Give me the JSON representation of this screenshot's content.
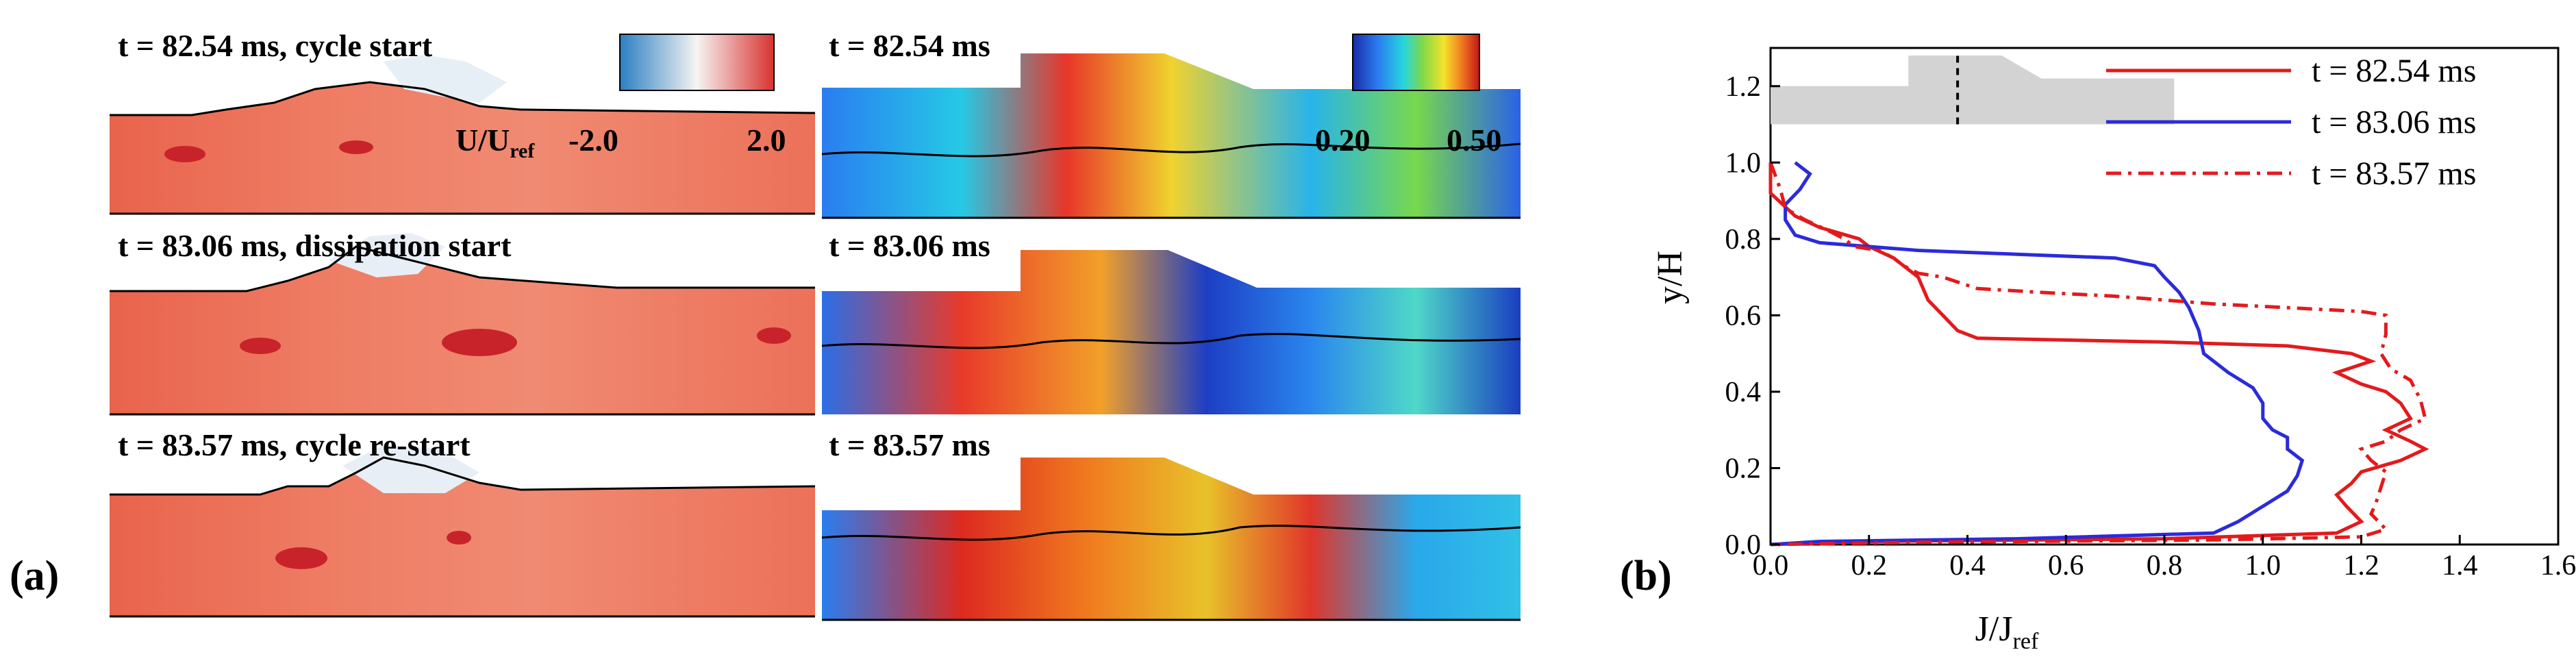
{
  "panel_a": {
    "letter": "(a)",
    "velocity_panels": [
      {
        "title": "t = 82.54 ms, cycle start"
      },
      {
        "title": "t = 83.06 ms, dissipation start"
      },
      {
        "title": "t = 83.57 ms, cycle re-start"
      }
    ],
    "vorticity_panels": [
      {
        "title": "t = 82.54 ms"
      },
      {
        "title": "t = 83.06 ms"
      },
      {
        "title": "t = 83.57 ms"
      }
    ],
    "colorbar_velocity": {
      "label_main": "U/U",
      "label_sub": "ref",
      "min_label": "-2.0",
      "max_label": "2.0"
    },
    "colorbar_rainbow": {
      "min_label": "0.20",
      "max_label": "0.50"
    },
    "colors": {
      "red_field": "#ec6a50",
      "blue_field": "#2a55d6",
      "white": "#f7f3f0"
    }
  },
  "panel_b": {
    "letter": "(b)",
    "chart_data": {
      "type": "line",
      "xlabel": "J/J",
      "xlabel_sub": "ref",
      "ylabel": "y/H",
      "xlim": [
        0.0,
        1.6
      ],
      "ylim": [
        0.0,
        1.0
      ],
      "xticks": [
        "0.0",
        "0.2",
        "0.4",
        "0.6",
        "0.8",
        "1.0",
        "1.2",
        "1.4",
        "1.6"
      ],
      "yticks": [
        "0.0",
        "0.2",
        "0.4",
        "0.6",
        "0.8",
        "1.0",
        "1.2"
      ],
      "legend_position": "top-right",
      "series": [
        {
          "name": "t = 82.54 ms",
          "color": "#e31a1c",
          "dash": "solid",
          "points": [
            [
              0.0,
              1.0
            ],
            [
              0.0,
              0.92
            ],
            [
              0.05,
              0.86
            ],
            [
              0.1,
              0.83
            ],
            [
              0.18,
              0.8
            ],
            [
              0.2,
              0.78
            ],
            [
              0.25,
              0.75
            ],
            [
              0.28,
              0.72
            ],
            [
              0.3,
              0.7
            ],
            [
              0.32,
              0.64
            ],
            [
              0.35,
              0.6
            ],
            [
              0.38,
              0.56
            ],
            [
              0.42,
              0.54
            ],
            [
              0.8,
              0.53
            ],
            [
              1.05,
              0.52
            ],
            [
              1.18,
              0.5
            ],
            [
              1.22,
              0.48
            ],
            [
              1.15,
              0.45
            ],
            [
              1.2,
              0.42
            ],
            [
              1.25,
              0.4
            ],
            [
              1.28,
              0.37
            ],
            [
              1.3,
              0.33
            ],
            [
              1.25,
              0.3
            ],
            [
              1.3,
              0.27
            ],
            [
              1.33,
              0.25
            ],
            [
              1.28,
              0.22
            ],
            [
              1.2,
              0.19
            ],
            [
              1.18,
              0.16
            ],
            [
              1.15,
              0.13
            ],
            [
              1.17,
              0.1
            ],
            [
              1.2,
              0.06
            ],
            [
              1.15,
              0.03
            ],
            [
              0.8,
              0.015
            ],
            [
              0.2,
              0.008
            ],
            [
              0.0,
              0.0
            ]
          ]
        },
        {
          "name": "t = 83.06 ms",
          "color": "#2b2bdb",
          "dash": "solid",
          "points": [
            [
              0.05,
              1.0
            ],
            [
              0.08,
              0.97
            ],
            [
              0.06,
              0.93
            ],
            [
              0.03,
              0.89
            ],
            [
              0.03,
              0.85
            ],
            [
              0.05,
              0.81
            ],
            [
              0.1,
              0.79
            ],
            [
              0.3,
              0.77
            ],
            [
              0.5,
              0.76
            ],
            [
              0.7,
              0.75
            ],
            [
              0.78,
              0.73
            ],
            [
              0.8,
              0.7
            ],
            [
              0.83,
              0.66
            ],
            [
              0.85,
              0.62
            ],
            [
              0.87,
              0.56
            ],
            [
              0.88,
              0.5
            ],
            [
              0.93,
              0.45
            ],
            [
              0.98,
              0.41
            ],
            [
              1.0,
              0.37
            ],
            [
              1.0,
              0.33
            ],
            [
              1.02,
              0.3
            ],
            [
              1.05,
              0.28
            ],
            [
              1.05,
              0.25
            ],
            [
              1.08,
              0.22
            ],
            [
              1.07,
              0.18
            ],
            [
              1.05,
              0.14
            ],
            [
              1.0,
              0.1
            ],
            [
              0.95,
              0.06
            ],
            [
              0.9,
              0.03
            ],
            [
              0.5,
              0.015
            ],
            [
              0.1,
              0.008
            ],
            [
              0.0,
              0.0
            ]
          ]
        },
        {
          "name": "t = 83.57 ms",
          "color": "#e31a1c",
          "dash": "dashdot",
          "points": [
            [
              0.0,
              1.0
            ],
            [
              0.02,
              0.93
            ],
            [
              0.03,
              0.88
            ],
            [
              0.07,
              0.85
            ],
            [
              0.12,
              0.82
            ],
            [
              0.15,
              0.8
            ],
            [
              0.17,
              0.78
            ],
            [
              0.22,
              0.77
            ],
            [
              0.25,
              0.75
            ],
            [
              0.27,
              0.73
            ],
            [
              0.3,
              0.71
            ],
            [
              0.35,
              0.7
            ],
            [
              0.42,
              0.67
            ],
            [
              0.55,
              0.66
            ],
            [
              0.7,
              0.65
            ],
            [
              0.9,
              0.63
            ],
            [
              1.05,
              0.62
            ],
            [
              1.2,
              0.61
            ],
            [
              1.25,
              0.6
            ],
            [
              1.25,
              0.55
            ],
            [
              1.24,
              0.5
            ],
            [
              1.26,
              0.46
            ],
            [
              1.3,
              0.43
            ],
            [
              1.32,
              0.38
            ],
            [
              1.33,
              0.33
            ],
            [
              1.28,
              0.3
            ],
            [
              1.25,
              0.27
            ],
            [
              1.2,
              0.25
            ],
            [
              1.22,
              0.22
            ],
            [
              1.25,
              0.19
            ],
            [
              1.24,
              0.15
            ],
            [
              1.23,
              0.11
            ],
            [
              1.22,
              0.08
            ],
            [
              1.25,
              0.04
            ],
            [
              1.2,
              0.02
            ],
            [
              0.9,
              0.012
            ],
            [
              0.3,
              0.006
            ],
            [
              0.0,
              0.0
            ]
          ]
        }
      ],
      "inset": {
        "fill": "#d3d3d3",
        "marker_line": "dashed"
      }
    }
  }
}
